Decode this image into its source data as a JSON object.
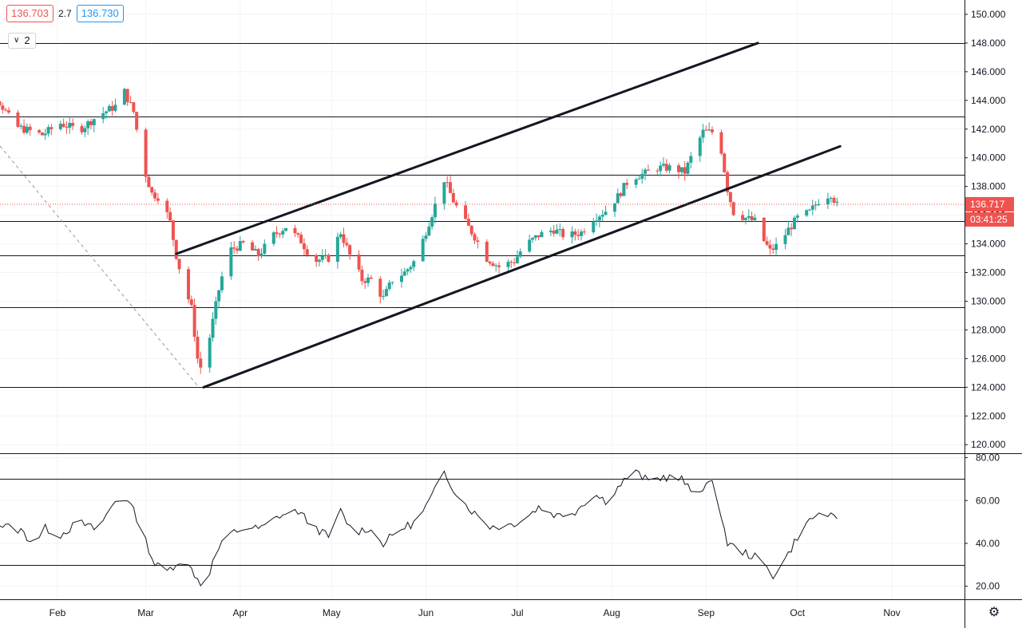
{
  "toolbar": {
    "sell_price": "136.703",
    "spread": "2.7",
    "buy_price": "136.730",
    "indicator_count": "2"
  },
  "price_axis": {
    "ticks": [
      "150.000",
      "148.000",
      "146.000",
      "144.000",
      "142.000",
      "140.000",
      "138.000",
      "136.000",
      "134.000",
      "132.000",
      "130.000",
      "128.000",
      "126.000",
      "124.000",
      "122.000",
      "120.000"
    ],
    "last_price": "136.717",
    "countdown": "03:41:25"
  },
  "oscillator_axis": {
    "ticks": [
      "80.00",
      "60.00",
      "40.00",
      "20.00"
    ]
  },
  "time_axis": {
    "labels": [
      "Feb",
      "Mar",
      "Apr",
      "May",
      "Jun",
      "Jul",
      "Aug",
      "Sep",
      "Oct",
      "Nov"
    ]
  },
  "colors": {
    "up": "#26a69a",
    "down": "#ef5350",
    "line": "#131722",
    "grid": "#f0f3fa"
  },
  "icons": {
    "settings": "gear-icon",
    "collapse": "chevron-down-icon"
  },
  "chart_data": {
    "type": "candlestick",
    "ylim": [
      119.4,
      151.0
    ],
    "oscillator_ylim": [
      13.9,
      81.7
    ],
    "horizontal_levels": [
      148.0,
      142.9,
      138.8,
      135.6,
      133.2,
      129.6,
      124.0
    ],
    "oscillator_levels": [
      70,
      30
    ],
    "trend_lines": [
      {
        "from": [
          "Mar 11",
          133.3
        ],
        "to": [
          "Sep 18",
          148.0
        ]
      },
      {
        "from": [
          "Mar 20",
          124.0
        ],
        "to": [
          "Oct 15",
          140.8
        ]
      }
    ],
    "price_anchors": [
      [
        "Jan 1",
        143.6
      ],
      [
        "Jan 12",
        144.2
      ],
      [
        "Jan 18",
        142.2
      ],
      [
        "Jan 27",
        141.6
      ],
      [
        "Feb 2",
        142.4
      ],
      [
        "Feb 8",
        141.9
      ],
      [
        "Feb 14",
        142.9
      ],
      [
        "Feb 20",
        143.6
      ],
      [
        "Feb 23",
        144.6
      ],
      [
        "Feb 26",
        143.2
      ],
      [
        "Feb 29",
        139.5
      ],
      [
        "Mar 3",
        137.5
      ],
      [
        "Mar 6",
        137.2
      ],
      [
        "Mar 9",
        135.5
      ],
      [
        "Mar 11",
        133.2
      ],
      [
        "Mar 13",
        131.5
      ],
      [
        "Mar 16",
        129.5
      ],
      [
        "Mar 18",
        126.0
      ],
      [
        "Mar 20",
        124.8
      ],
      [
        "Mar 22",
        127.5
      ],
      [
        "Mar 25",
        130.8
      ],
      [
        "Mar 28",
        133.5
      ],
      [
        "Apr 2",
        134.0
      ],
      [
        "Apr 7",
        133.2
      ],
      [
        "Apr 12",
        134.6
      ],
      [
        "Apr 16",
        135.2
      ],
      [
        "Apr 21",
        134.2
      ],
      [
        "Apr 25",
        132.8
      ],
      [
        "Apr 30",
        133.0
      ],
      [
        "May 4",
        134.8
      ],
      [
        "May 7",
        133.2
      ],
      [
        "May 11",
        131.5
      ],
      [
        "May 14",
        131.5
      ],
      [
        "May 18",
        130.2
      ],
      [
        "May 21",
        131.5
      ],
      [
        "May 25",
        132.0
      ],
      [
        "May 29",
        133.0
      ],
      [
        "Jun 2",
        135.5
      ],
      [
        "Jun 5",
        137.3
      ],
      [
        "Jun 7",
        138.5
      ],
      [
        "Jun 10",
        137.0
      ],
      [
        "Jun 13",
        135.8
      ],
      [
        "Jun 17",
        134.5
      ],
      [
        "Jun 21",
        133.0
      ],
      [
        "Jun 25",
        132.4
      ],
      [
        "Jun 30",
        132.8
      ],
      [
        "Jul 3",
        133.8
      ],
      [
        "Jul 8",
        134.6
      ],
      [
        "Jul 13",
        135.0
      ],
      [
        "Jul 17",
        134.5
      ],
      [
        "Jul 22",
        134.8
      ],
      [
        "Jul 26",
        135.8
      ],
      [
        "Jul 30",
        136.3
      ],
      [
        "Aug 3",
        137.3
      ],
      [
        "Aug 7",
        138.6
      ],
      [
        "Aug 12",
        138.9
      ],
      [
        "Aug 16",
        139.3
      ],
      [
        "Aug 21",
        139.3
      ],
      [
        "Aug 25",
        139.0
      ],
      [
        "Aug 28",
        140.5
      ],
      [
        "Aug 31",
        141.8
      ],
      [
        "Sep 3",
        141.8
      ],
      [
        "Sep 6",
        140.5
      ],
      [
        "Sep 8",
        137.8
      ],
      [
        "Sep 10",
        136.2
      ],
      [
        "Sep 14",
        135.8
      ],
      [
        "Sep 18",
        135.5
      ],
      [
        "Sep 20",
        134.2
      ],
      [
        "Sep 22",
        133.5
      ],
      [
        "Sep 25",
        134.0
      ],
      [
        "Sep 28",
        135.0
      ],
      [
        "Oct 1",
        135.8
      ],
      [
        "Oct 5",
        136.2
      ],
      [
        "Oct 8",
        137.0
      ],
      [
        "Oct 12",
        137.5
      ],
      [
        "Oct 14",
        136.7
      ]
    ],
    "oscillator_anchors": [
      [
        "Jan 1",
        55
      ],
      [
        "Jan 5",
        57
      ],
      [
        "Jan 12",
        49
      ],
      [
        "Jan 20",
        46
      ],
      [
        "Jan 24",
        40
      ],
      [
        "Jan 28",
        47
      ],
      [
        "Feb 2",
        44
      ],
      [
        "Feb 8",
        50
      ],
      [
        "Feb 14",
        46
      ],
      [
        "Feb 20",
        60
      ],
      [
        "Feb 24",
        61
      ],
      [
        "Feb 27",
        52
      ],
      [
        "Mar 4",
        30
      ],
      [
        "Mar 8",
        27
      ],
      [
        "Mar 12",
        32
      ],
      [
        "Mar 16",
        28
      ],
      [
        "Mar 20",
        19
      ],
      [
        "Mar 24",
        35
      ],
      [
        "Mar 28",
        44
      ],
      [
        "Apr 2",
        47
      ],
      [
        "Apr 8",
        47
      ],
      [
        "Apr 14",
        53
      ],
      [
        "Apr 20",
        55
      ],
      [
        "Apr 25",
        48
      ],
      [
        "Apr 30",
        43
      ],
      [
        "May 4",
        55
      ],
      [
        "May 8",
        45
      ],
      [
        "May 13",
        47
      ],
      [
        "May 18",
        40
      ],
      [
        "May 24",
        47
      ],
      [
        "May 29",
        50
      ],
      [
        "Jun 3",
        62
      ],
      [
        "Jun 7",
        73
      ],
      [
        "Jun 12",
        61
      ],
      [
        "Jun 17",
        54
      ],
      [
        "Jun 22",
        48
      ],
      [
        "Jun 27",
        48
      ],
      [
        "Jul 3",
        51
      ],
      [
        "Jul 8",
        57
      ],
      [
        "Jul 14",
        53
      ],
      [
        "Jul 20",
        55
      ],
      [
        "Jul 26",
        63
      ],
      [
        "Jul 30",
        60
      ],
      [
        "Aug 3",
        66
      ],
      [
        "Aug 8",
        74
      ],
      [
        "Aug 13",
        69
      ],
      [
        "Aug 18",
        71
      ],
      [
        "Aug 24",
        70
      ],
      [
        "Aug 28",
        62
      ],
      [
        "Sep 1",
        68
      ],
      [
        "Sep 4",
        67
      ],
      [
        "Sep 8",
        40
      ],
      [
        "Sep 13",
        36
      ],
      [
        "Sep 18",
        33
      ],
      [
        "Sep 23",
        25
      ],
      [
        "Sep 28",
        35
      ],
      [
        "Oct 2",
        46
      ],
      [
        "Oct 6",
        52
      ],
      [
        "Oct 10",
        55
      ],
      [
        "Oct 14",
        50
      ]
    ]
  }
}
